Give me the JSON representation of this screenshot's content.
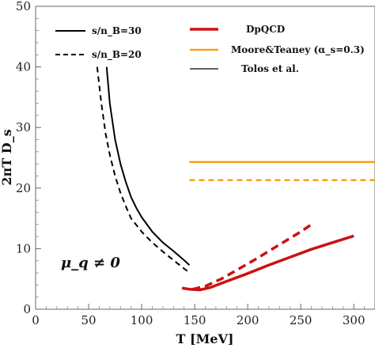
{
  "chart_data": {
    "type": "line",
    "xlabel": "T [MeV]",
    "ylabel": "2πT D_s",
    "xlim": [
      0,
      320
    ],
    "ylim": [
      0,
      50
    ],
    "xticks": [
      0,
      50,
      100,
      150,
      200,
      250,
      300
    ],
    "yticks": [
      0,
      10,
      20,
      30,
      40,
      50
    ],
    "annotation": "μ_q ≠ 0",
    "legend_left": [
      {
        "text": "s/n_B=30",
        "style": "solid",
        "color": "#000000"
      },
      {
        "text": "s/n_B=20",
        "style": "dashed",
        "color": "#000000"
      }
    ],
    "legend_right": [
      {
        "text": "DpQCD",
        "color": "#cc1111"
      },
      {
        "text": "Moore&Teaney (α_s=0.3)",
        "color": "#f5a01a"
      },
      {
        "text": "Tolos et al.",
        "color": "#000000"
      }
    ],
    "series": [
      {
        "name": "Tolos et al. s/n_B=30",
        "color": "#000000",
        "style": "solid",
        "width": 2,
        "points": [
          [
            67,
            40
          ],
          [
            70,
            34
          ],
          [
            75,
            28
          ],
          [
            80,
            24
          ],
          [
            85,
            21
          ],
          [
            90,
            18.5
          ],
          [
            95,
            16.7
          ],
          [
            100,
            15.2
          ],
          [
            110,
            12.8
          ],
          [
            120,
            11
          ],
          [
            130,
            9.6
          ],
          [
            140,
            8.1
          ],
          [
            145,
            7.3
          ]
        ]
      },
      {
        "name": "Tolos et al. s/n_B=20",
        "color": "#000000",
        "style": "dashed",
        "width": 2,
        "points": [
          [
            58,
            40
          ],
          [
            62,
            34
          ],
          [
            66,
            29
          ],
          [
            70,
            25.5
          ],
          [
            75,
            22
          ],
          [
            80,
            19.2
          ],
          [
            85,
            17
          ],
          [
            90,
            15
          ],
          [
            100,
            12.8
          ],
          [
            110,
            11
          ],
          [
            120,
            9.5
          ],
          [
            130,
            8.1
          ],
          [
            140,
            6.7
          ],
          [
            145,
            6.1
          ]
        ]
      },
      {
        "name": "DpQCD s/n_B=30",
        "color": "#cc1111",
        "style": "solid",
        "width": 3.5,
        "points": [
          [
            138,
            3.5
          ],
          [
            145,
            3.3
          ],
          [
            155,
            3.2
          ],
          [
            165,
            3.6
          ],
          [
            180,
            4.6
          ],
          [
            200,
            5.9
          ],
          [
            220,
            7.3
          ],
          [
            240,
            8.6
          ],
          [
            260,
            9.9
          ],
          [
            280,
            11
          ],
          [
            300,
            12.1
          ]
        ]
      },
      {
        "name": "DpQCD s/n_B=20",
        "color": "#cc1111",
        "style": "dashed",
        "width": 3.5,
        "points": [
          [
            148,
            3.3
          ],
          [
            160,
            3.8
          ],
          [
            175,
            5
          ],
          [
            190,
            6.5
          ],
          [
            205,
            8
          ],
          [
            220,
            9.6
          ],
          [
            235,
            11.2
          ],
          [
            250,
            12.8
          ],
          [
            260,
            14
          ]
        ]
      },
      {
        "name": "Moore&Teaney s/n_B=30",
        "color": "#f5a01a",
        "style": "solid",
        "width": 2.5,
        "points": [
          [
            145,
            24.3
          ],
          [
            320,
            24.3
          ]
        ]
      },
      {
        "name": "Moore&Teaney s/n_B=20",
        "color": "#f5a01a",
        "style": "dashed",
        "width": 2.5,
        "points": [
          [
            145,
            21.3
          ],
          [
            320,
            21.3
          ]
        ]
      }
    ]
  }
}
